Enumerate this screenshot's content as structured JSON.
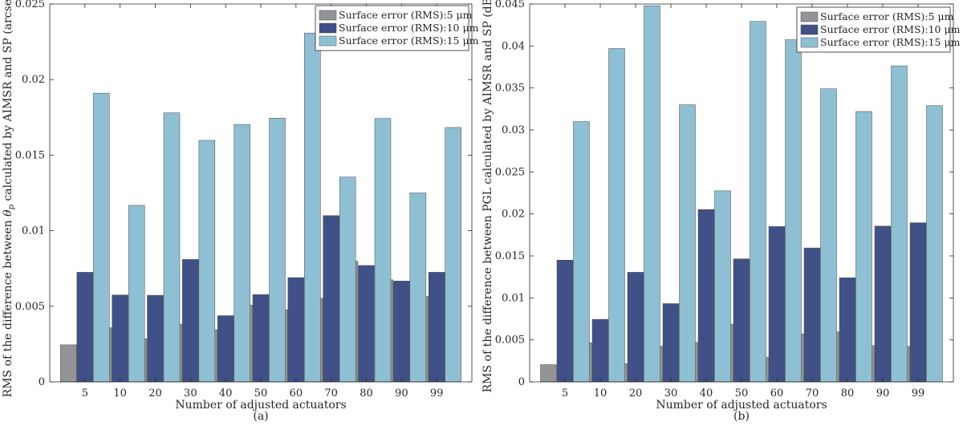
{
  "chart_data": [
    {
      "type": "bar",
      "categories": [
        "5",
        "10",
        "20",
        "30",
        "40",
        "50",
        "60",
        "70",
        "80",
        "90",
        "99"
      ],
      "series": [
        {
          "name": "Surface error (RMS):5 μm",
          "color": "#929497",
          "values": [
            0.00245,
            0.00358,
            0.00285,
            0.00382,
            0.00345,
            0.00508,
            0.00477,
            0.00553,
            0.00798,
            0.00675,
            0.00565
          ]
        },
        {
          "name": "Surface error (RMS):10 μm",
          "color": "#3f5186",
          "values": [
            0.00725,
            0.00575,
            0.00573,
            0.0081,
            0.00438,
            0.00578,
            0.0069,
            0.011,
            0.0077,
            0.00667,
            0.00725
          ]
        },
        {
          "name": "Surface error (RMS):15 μm",
          "color": "#8fbfd3",
          "values": [
            0.0191,
            0.01168,
            0.0178,
            0.01598,
            0.01703,
            0.01745,
            0.02308,
            0.01355,
            0.01743,
            0.0125,
            0.01683
          ]
        }
      ],
      "ylim": [
        0,
        0.025
      ],
      "yticks": [
        "0",
        "0.005",
        "0.01",
        "0.015",
        "0.02",
        "0.025"
      ],
      "xlabel": "Number of adjusted actuators",
      "ylabel_parts": [
        "RMS of the difference between ",
        "θ",
        "p",
        " calculated by AIMSR and SP (arcsec)"
      ],
      "caption": "(a)",
      "legend_position": "top-right",
      "grid": false
    },
    {
      "type": "bar",
      "categories": [
        "5",
        "10",
        "20",
        "30",
        "40",
        "50",
        "60",
        "70",
        "80",
        "90",
        "99"
      ],
      "series": [
        {
          "name": "Surface error (RMS):5 μm",
          "color": "#929497",
          "values": [
            0.00205,
            0.00465,
            0.00218,
            0.00425,
            0.0047,
            0.00688,
            0.00293,
            0.0057,
            0.00595,
            0.00433,
            0.00423
          ]
        },
        {
          "name": "Surface error (RMS):10 μm",
          "color": "#3f5186",
          "values": [
            0.0145,
            0.00745,
            0.01305,
            0.00932,
            0.02053,
            0.01465,
            0.0185,
            0.01595,
            0.0124,
            0.01855,
            0.01895
          ]
        },
        {
          "name": "Surface error (RMS):15 μm",
          "color": "#8fbfd3",
          "values": [
            0.031,
            0.0397,
            0.0448,
            0.033,
            0.02275,
            0.04293,
            0.04075,
            0.0349,
            0.0322,
            0.03763,
            0.0329
          ]
        }
      ],
      "ylim": [
        0,
        0.045
      ],
      "yticks": [
        "0",
        "0.005",
        "0.01",
        "0.015",
        "0.02",
        "0.025",
        "0.03",
        "0.035",
        "0.04",
        "0.045"
      ],
      "xlabel": "Number of adjusted actuators",
      "ylabel_parts": [
        "RMS of the difference between PGL calculated by AIMSR and SP (dB)"
      ],
      "caption": "(b)",
      "legend_position": "top-right",
      "grid": false
    }
  ]
}
